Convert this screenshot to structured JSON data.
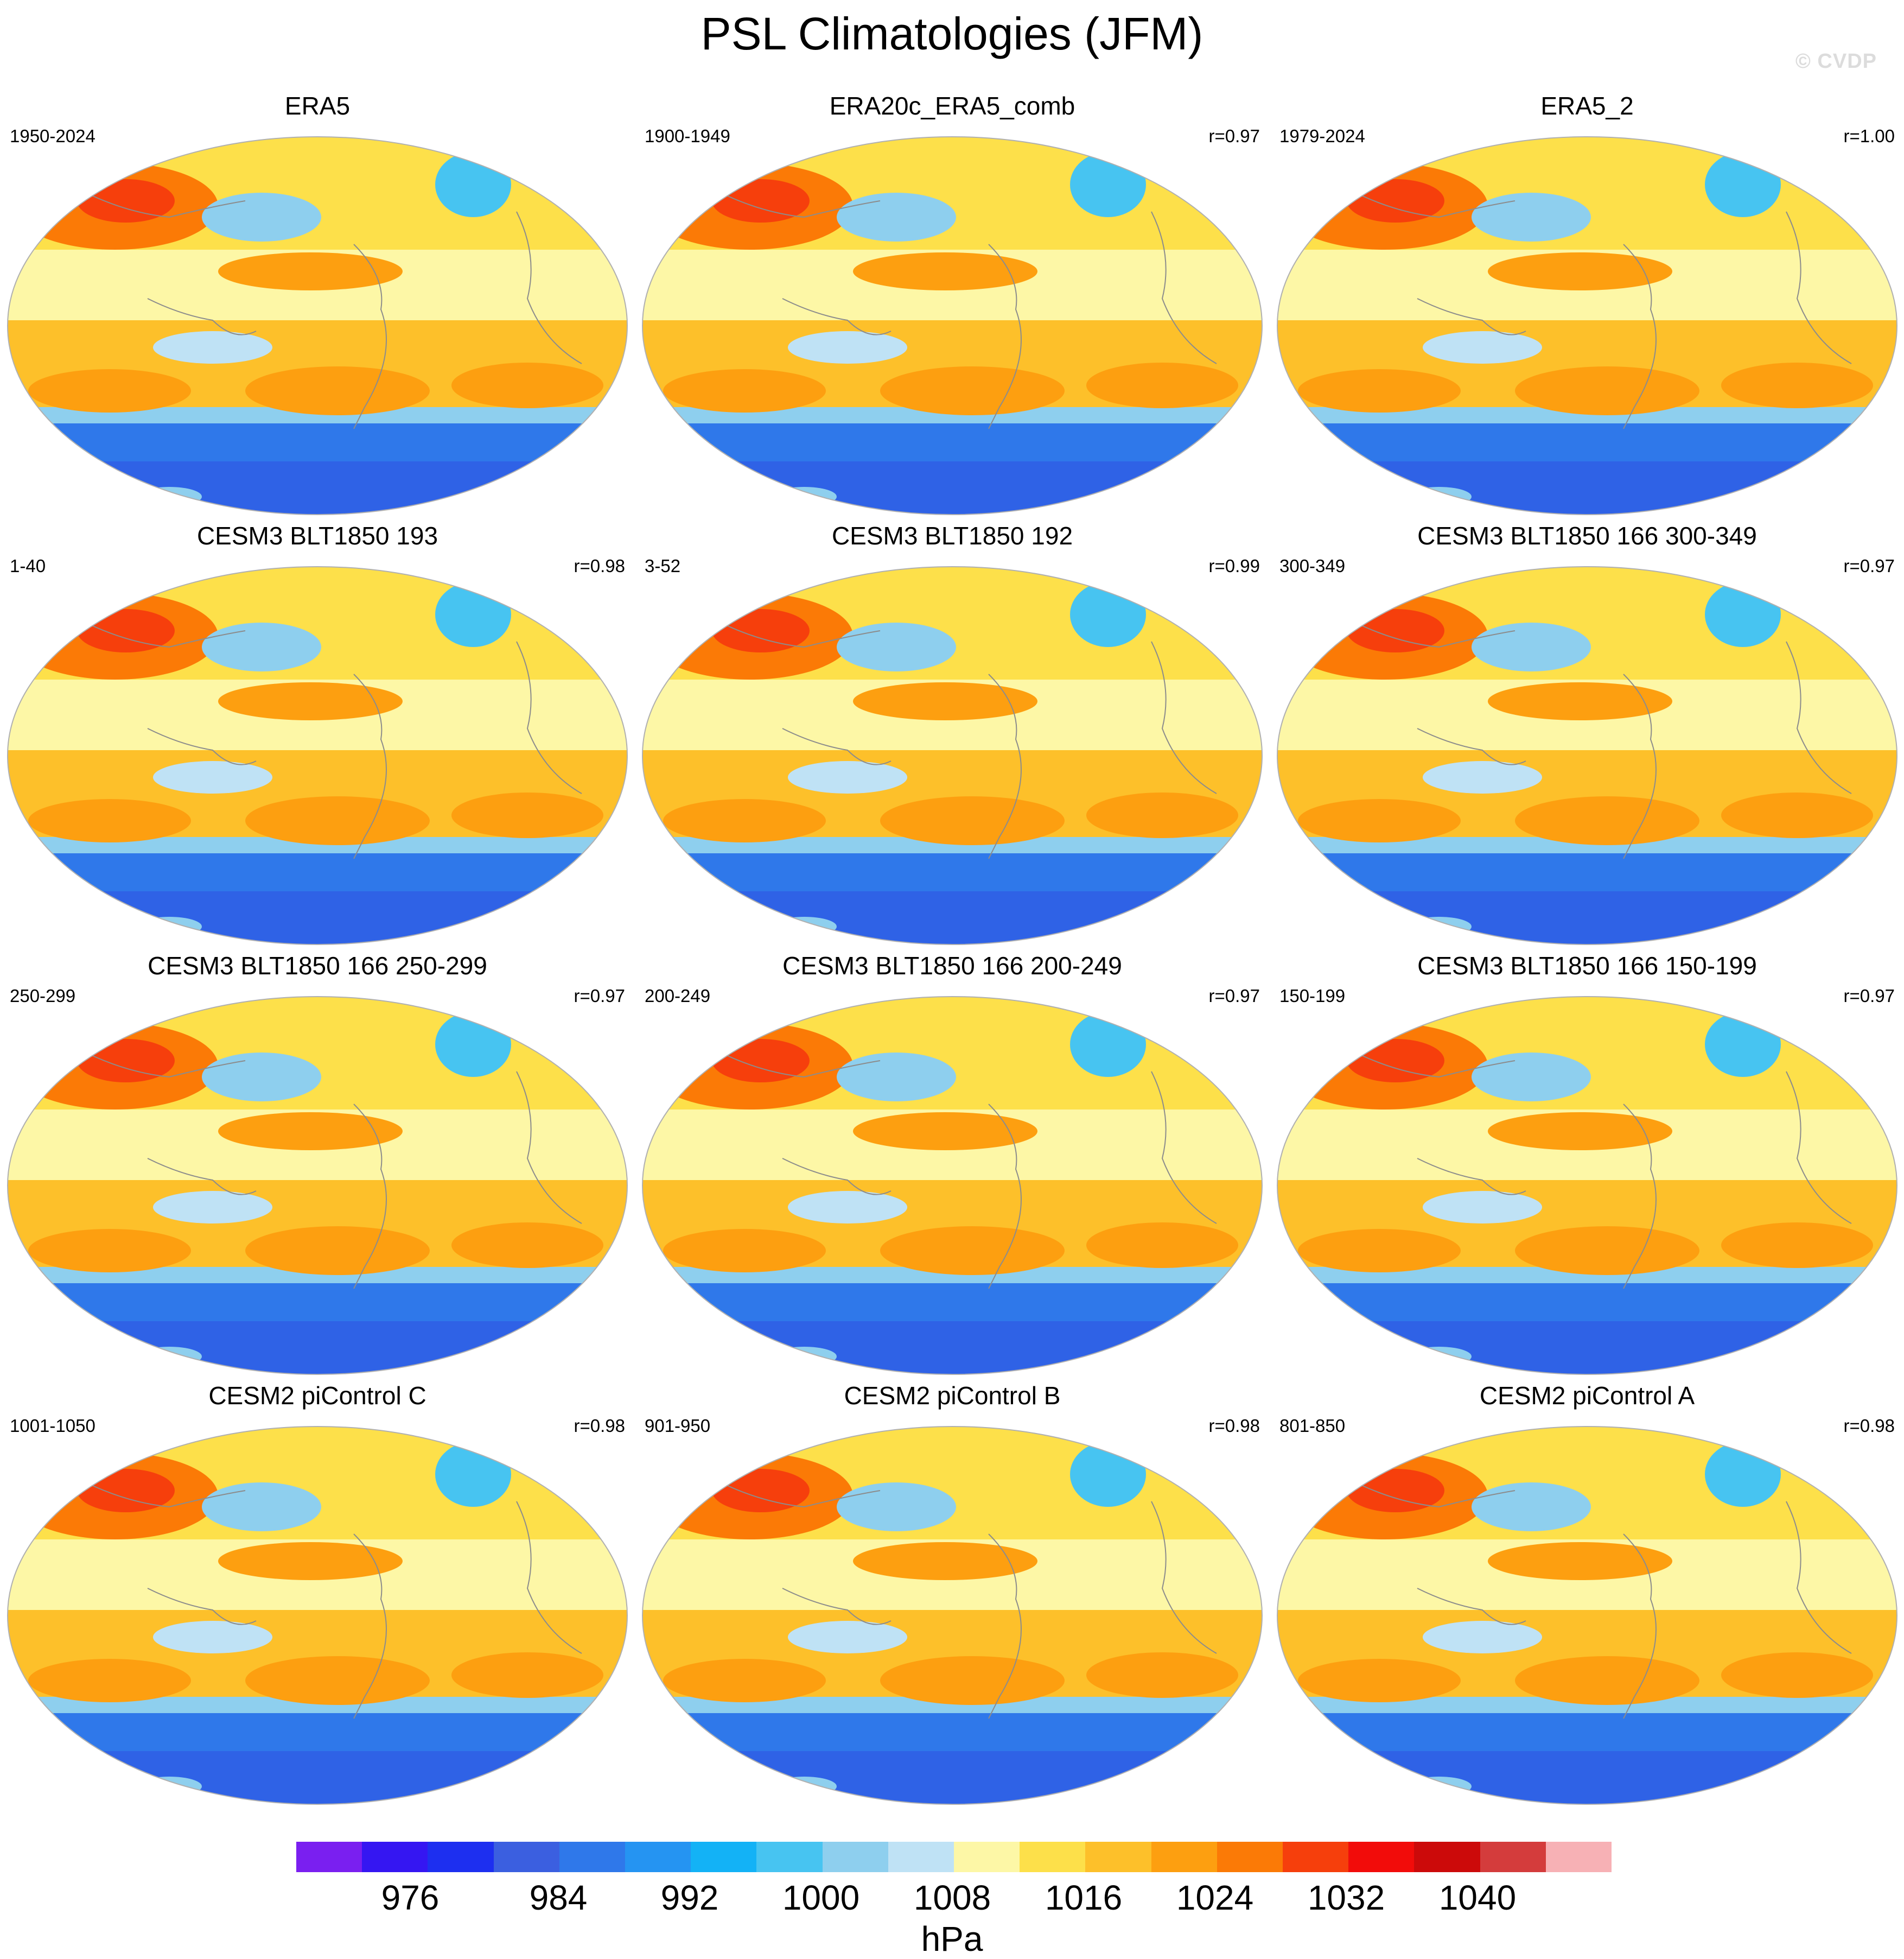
{
  "title": "PSL Climatologies (JFM)",
  "watermark": "© CVDP",
  "panels": [
    {
      "name": "ERA5",
      "period": "1950-2024",
      "r": ""
    },
    {
      "name": "ERA20c_ERA5_comb",
      "period": "1900-1949",
      "r": "r=0.97"
    },
    {
      "name": "ERA5_2",
      "period": "1979-2024",
      "r": "r=1.00"
    },
    {
      "name": "CESM3 BLT1850 193",
      "period": "1-40",
      "r": "r=0.98"
    },
    {
      "name": "CESM3 BLT1850 192",
      "period": "3-52",
      "r": "r=0.99"
    },
    {
      "name": "CESM3 BLT1850 166 300-349",
      "period": "300-349",
      "r": "r=0.97"
    },
    {
      "name": "CESM3 BLT1850 166 250-299",
      "period": "250-299",
      "r": "r=0.97"
    },
    {
      "name": "CESM3 BLT1850 166 200-249",
      "period": "200-249",
      "r": "r=0.97"
    },
    {
      "name": "CESM3 BLT1850 166 150-199",
      "period": "150-199",
      "r": "r=0.97"
    },
    {
      "name": "CESM2 piControl C",
      "period": "1001-1050",
      "r": "r=0.98"
    },
    {
      "name": "CESM2 piControl B",
      "period": "901-950",
      "r": "r=0.98"
    },
    {
      "name": "CESM2 piControl A",
      "period": "801-850",
      "r": "r=0.98"
    }
  ],
  "colorbar": {
    "units": "hPa",
    "labels": [
      "976",
      "984",
      "992",
      "1000",
      "1008",
      "1016",
      "1024",
      "1032",
      "1040"
    ],
    "colors": [
      "#7a1ff0",
      "#3516f2",
      "#1d2ff0",
      "#3b5fe0",
      "#2f78ea",
      "#2594f2",
      "#13b2f6",
      "#47c4f1",
      "#8ecfee",
      "#bfe2f5",
      "#fdf7a6",
      "#fde04a",
      "#fdc02a",
      "#fd9f10",
      "#fb7a06",
      "#f63f0c",
      "#f20c0a",
      "#cc0a0a",
      "#d43c3c",
      "#f7b1b5"
    ]
  },
  "map_style": {
    "polar_south": "#2f62e6",
    "south_band": "#2f78ea",
    "edge_band": "#8ecfee",
    "midlat_south": "#fdc02a",
    "subtrop_high": "#fd9f10",
    "tropics": "#fdf7a6",
    "tropic_low": "#bfe2f5",
    "north_bg": "#fde04a",
    "north_high": "#fb7a06",
    "siberian_core": "#f63f0c",
    "aleutian_low": "#8ecfee",
    "icelandic_low": "#47c4f1",
    "land": "#8c8c8c"
  }
}
